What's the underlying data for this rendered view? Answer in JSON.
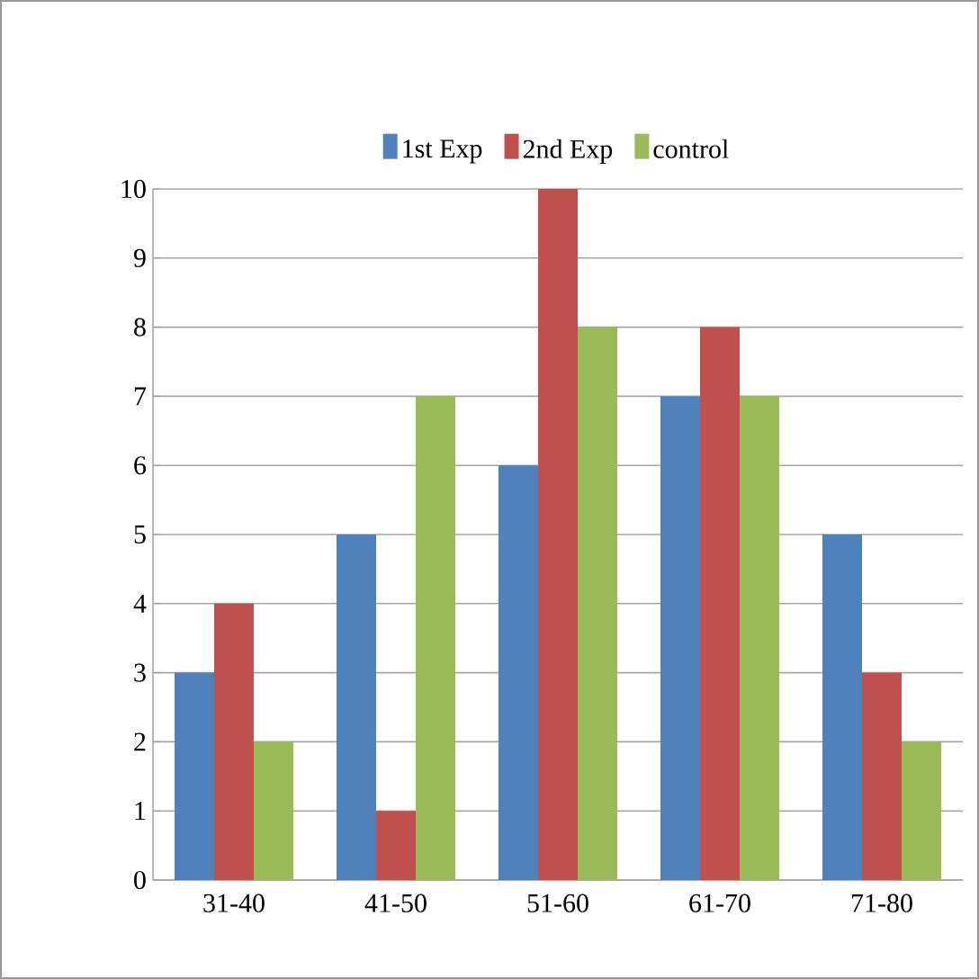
{
  "chart_data": {
    "type": "bar",
    "categories": [
      "31-40",
      "41-50",
      "51-60",
      "61-70",
      "71-80"
    ],
    "series": [
      {
        "name": "1st Exp",
        "color": "#4f81bd",
        "values": [
          3,
          5,
          6,
          7,
          5
        ]
      },
      {
        "name": "2nd Exp",
        "color": "#c0504d",
        "values": [
          4,
          1,
          10,
          8,
          3
        ]
      },
      {
        "name": "control",
        "color": "#9bbb59",
        "values": [
          2,
          7,
          8,
          7,
          2
        ]
      }
    ],
    "ylim": [
      0,
      10
    ],
    "yticks": [
      0,
      1,
      2,
      3,
      4,
      5,
      6,
      7,
      8,
      9,
      10
    ],
    "grid": "y",
    "legend": "top"
  }
}
